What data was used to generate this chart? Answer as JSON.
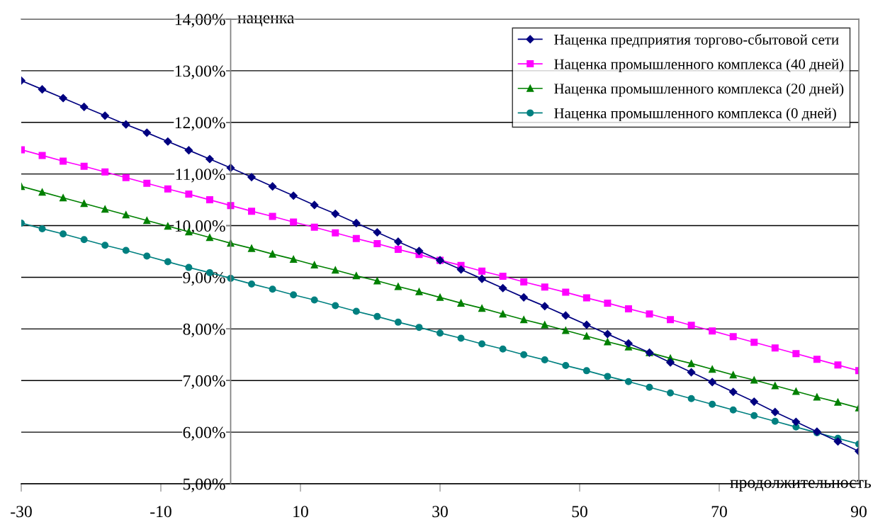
{
  "chart_data": {
    "type": "line",
    "ylabel": "наценка",
    "xlabel": "продолжительность",
    "x": [
      -30,
      -27,
      -24,
      -21,
      -18,
      -15,
      -12,
      -9,
      -6,
      -3,
      0,
      3,
      6,
      9,
      12,
      15,
      18,
      21,
      24,
      27,
      30,
      33,
      36,
      39,
      42,
      45,
      48,
      51,
      54,
      57,
      60,
      63,
      66,
      69,
      72,
      75,
      78,
      81,
      84,
      87,
      90
    ],
    "series": [
      {
        "name": "Наценка предприятия торгово-сбытовой сети",
        "color": "#000080",
        "marker": "diamond",
        "values": [
          12.81,
          12.64,
          12.47,
          12.3,
          12.13,
          11.96,
          11.8,
          11.63,
          11.46,
          11.29,
          11.12,
          10.94,
          10.76,
          10.58,
          10.4,
          10.23,
          10.05,
          9.87,
          9.69,
          9.51,
          9.33,
          9.15,
          8.97,
          8.79,
          8.61,
          8.44,
          8.26,
          8.08,
          7.9,
          7.72,
          7.54,
          7.35,
          7.16,
          6.97,
          6.78,
          6.59,
          6.39,
          6.2,
          6.01,
          5.82,
          5.63
        ]
      },
      {
        "name": "Наценка промышленного комплекса (40 дней)",
        "color": "#ff00ff",
        "marker": "square",
        "values": [
          11.47,
          11.36,
          11.25,
          11.15,
          11.04,
          10.93,
          10.82,
          10.71,
          10.61,
          10.5,
          10.39,
          10.28,
          10.18,
          10.07,
          9.97,
          9.86,
          9.75,
          9.65,
          9.54,
          9.44,
          9.33,
          9.23,
          9.12,
          9.02,
          8.91,
          8.81,
          8.71,
          8.6,
          8.5,
          8.39,
          8.29,
          8.18,
          8.07,
          7.96,
          7.85,
          7.74,
          7.63,
          7.52,
          7.41,
          7.3,
          7.19
        ]
      },
      {
        "name": "Наценка промышленного комплекса (20 дней)",
        "color": "#008000",
        "marker": "triangle",
        "values": [
          10.76,
          10.65,
          10.54,
          10.43,
          10.32,
          10.21,
          10.1,
          9.99,
          9.88,
          9.77,
          9.66,
          9.56,
          9.45,
          9.35,
          9.24,
          9.14,
          9.03,
          8.93,
          8.82,
          8.72,
          8.61,
          8.5,
          8.4,
          8.29,
          8.18,
          8.08,
          7.97,
          7.86,
          7.75,
          7.65,
          7.54,
          7.43,
          7.33,
          7.22,
          7.11,
          7.01,
          6.9,
          6.79,
          6.68,
          6.58,
          6.47
        ]
      },
      {
        "name": "Наценка промышленного комплекса (0 дней)",
        "color": "#008080",
        "marker": "circle",
        "values": [
          10.05,
          9.94,
          9.84,
          9.73,
          9.62,
          9.52,
          9.41,
          9.3,
          9.19,
          9.09,
          8.98,
          8.87,
          8.77,
          8.66,
          8.56,
          8.45,
          8.34,
          8.24,
          8.13,
          8.03,
          7.92,
          7.82,
          7.71,
          7.61,
          7.5,
          7.4,
          7.29,
          7.19,
          7.08,
          6.98,
          6.87,
          6.76,
          6.65,
          6.54,
          6.43,
          6.32,
          6.21,
          6.1,
          5.99,
          5.88,
          5.77
        ]
      }
    ],
    "xlim": [
      -30,
      90
    ],
    "xticks": [
      -30,
      -10,
      10,
      30,
      50,
      70,
      90
    ],
    "ylim": [
      5,
      14
    ],
    "yticks": [
      {
        "value": 5,
        "label": "5,00%"
      },
      {
        "value": 6,
        "label": "6,00%"
      },
      {
        "value": 7,
        "label": "7,00%"
      },
      {
        "value": 8,
        "label": "8,00%"
      },
      {
        "value": 9,
        "label": "9,00%"
      },
      {
        "value": 10,
        "label": "10,00%"
      },
      {
        "value": 11,
        "label": "11,00%"
      },
      {
        "value": 12,
        "label": "12,00%"
      },
      {
        "value": 13,
        "label": "13,00%"
      },
      {
        "value": 14,
        "label": "14,00%"
      }
    ],
    "grid": "y",
    "legend": "top right",
    "line_style": "solid"
  }
}
